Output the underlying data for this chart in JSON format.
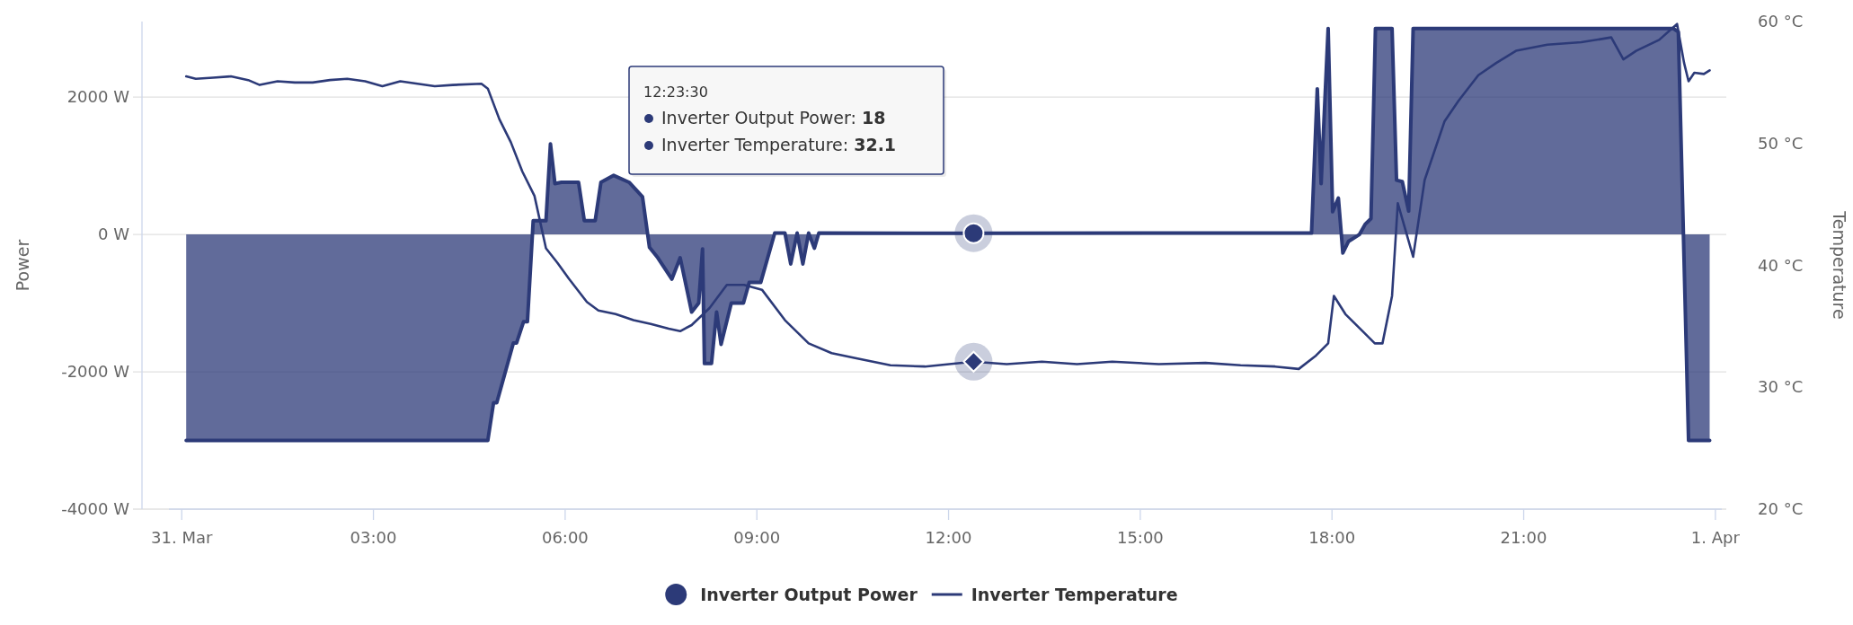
{
  "chart_data": {
    "type": "area",
    "ylabel": "Power",
    "y2label": "Temperature",
    "xlim": [
      -0.2,
      24.1
    ],
    "xticks": [
      {
        "value": 0,
        "label": "31. Mar"
      },
      {
        "value": 3,
        "label": "03:00"
      },
      {
        "value": 6,
        "label": "06:00"
      },
      {
        "value": 9,
        "label": "09:00"
      },
      {
        "value": 12,
        "label": "12:00"
      },
      {
        "value": 15,
        "label": "15:00"
      },
      {
        "value": 18,
        "label": "18:00"
      },
      {
        "value": 21,
        "label": "21:00"
      },
      {
        "value": 24,
        "label": "1. Apr"
      }
    ],
    "ylim": [
      -4000,
      3100
    ],
    "yticks": [
      {
        "value": -4000,
        "label": "-4000 W"
      },
      {
        "value": -2000,
        "label": "-2000 W"
      },
      {
        "value": 0,
        "label": "0 W"
      },
      {
        "value": 2000,
        "label": "2000 W"
      }
    ],
    "y2lim": [
      20,
      60
    ],
    "y2ticks": [
      {
        "value": 20,
        "label": "20 °C"
      },
      {
        "value": 30,
        "label": "30 °C"
      },
      {
        "value": 40,
        "label": "40 °C"
      },
      {
        "value": 50,
        "label": "50 °C"
      },
      {
        "value": 60,
        "label": "60 °C"
      }
    ],
    "grid": "y",
    "legend": "bottom",
    "annotations": [
      "12:23:30",
      "Inverter Output Power: 18",
      "Inverter Temperature: 32.1"
    ],
    "series": [
      {
        "name": "Inverter Output Power",
        "color": "#2c3a78",
        "x": [
          0.07,
          4.79,
          4.88,
          4.93,
          5.19,
          5.24,
          5.35,
          5.41,
          5.5,
          5.7,
          5.77,
          5.84,
          5.94,
          6.05,
          6.21,
          6.3,
          6.47,
          6.56,
          6.76,
          7.0,
          7.21,
          7.32,
          7.45,
          7.67,
          7.8,
          7.98,
          8.09,
          8.15,
          8.18,
          8.29,
          8.37,
          8.44,
          8.6,
          8.79,
          8.88,
          9.06,
          9.28,
          9.44,
          9.53,
          9.63,
          9.72,
          9.81,
          9.9,
          9.97,
          12.39,
          15.65,
          17.68,
          17.77,
          17.83,
          17.94,
          18.01,
          18.1,
          18.17,
          18.26,
          18.43,
          18.52,
          18.61,
          18.68,
          18.94,
          19.01,
          19.1,
          19.2,
          19.27,
          23.34,
          23.42,
          23.58,
          23.91
        ],
        "values": [
          -3000,
          -3000,
          -2450,
          -2450,
          -1580,
          -1580,
          -1270,
          -1270,
          200,
          200,
          1320,
          740,
          760,
          760,
          760,
          200,
          200,
          760,
          860,
          760,
          550,
          -190,
          -340,
          -650,
          -340,
          -1130,
          -1000,
          -210,
          -1880,
          -1880,
          -1130,
          -1600,
          -1000,
          -1000,
          -700,
          -700,
          20,
          20,
          -430,
          20,
          -430,
          20,
          -200,
          20,
          18,
          20,
          20,
          2120,
          740,
          3000,
          330,
          530,
          -270,
          -100,
          0,
          150,
          230,
          3000,
          3000,
          790,
          770,
          340,
          3000,
          3000,
          2950,
          -3000,
          -3000
        ]
      },
      {
        "name": "Inverter Temperature",
        "type": "line",
        "axis": "y2",
        "color": "#2c3a78",
        "x": [
          0.07,
          0.22,
          0.49,
          0.77,
          1.04,
          1.22,
          1.5,
          1.77,
          2.05,
          2.32,
          2.59,
          2.87,
          3.14,
          3.42,
          3.69,
          3.96,
          4.24,
          4.69,
          4.79,
          4.97,
          5.15,
          5.33,
          5.52,
          5.7,
          5.88,
          6.06,
          6.34,
          6.52,
          6.79,
          7.07,
          7.34,
          7.62,
          7.8,
          7.98,
          8.26,
          8.53,
          8.8,
          9.08,
          9.44,
          9.81,
          10.17,
          10.54,
          11.09,
          11.63,
          12.39,
          12.91,
          13.46,
          14.01,
          14.56,
          15.29,
          16.02,
          16.57,
          17.11,
          17.48,
          17.75,
          17.94,
          18.03,
          18.21,
          18.48,
          18.67,
          18.79,
          18.94,
          19.03,
          19.27,
          19.45,
          19.76,
          19.98,
          20.29,
          20.57,
          20.88,
          21.37,
          21.9,
          22.37,
          22.56,
          22.76,
          23.12,
          23.4,
          23.51,
          23.58,
          23.67,
          23.82,
          23.91
        ],
        "values": [
          55.5,
          55.3,
          55.4,
          55.5,
          55.2,
          54.8,
          55.1,
          55.0,
          55.0,
          55.2,
          55.3,
          55.1,
          54.7,
          55.1,
          54.9,
          54.7,
          54.8,
          54.9,
          54.5,
          52.0,
          50.1,
          47.7,
          45.7,
          41.4,
          40.2,
          38.9,
          37.0,
          36.3,
          36.0,
          35.5,
          35.2,
          34.8,
          34.6,
          35.1,
          36.5,
          38.4,
          38.4,
          38.0,
          35.5,
          33.6,
          32.8,
          32.4,
          31.8,
          31.7,
          32.1,
          31.9,
          32.1,
          31.9,
          32.1,
          31.9,
          32.0,
          31.8,
          31.7,
          31.5,
          32.6,
          33.6,
          37.5,
          36.0,
          34.6,
          33.6,
          33.6,
          37.5,
          45.1,
          40.7,
          47.0,
          51.8,
          53.5,
          55.6,
          56.6,
          57.6,
          58.1,
          58.3,
          58.7,
          56.9,
          57.6,
          58.5,
          59.8,
          56.6,
          55.1,
          55.8,
          55.7,
          56.0
        ]
      }
    ]
  }
}
